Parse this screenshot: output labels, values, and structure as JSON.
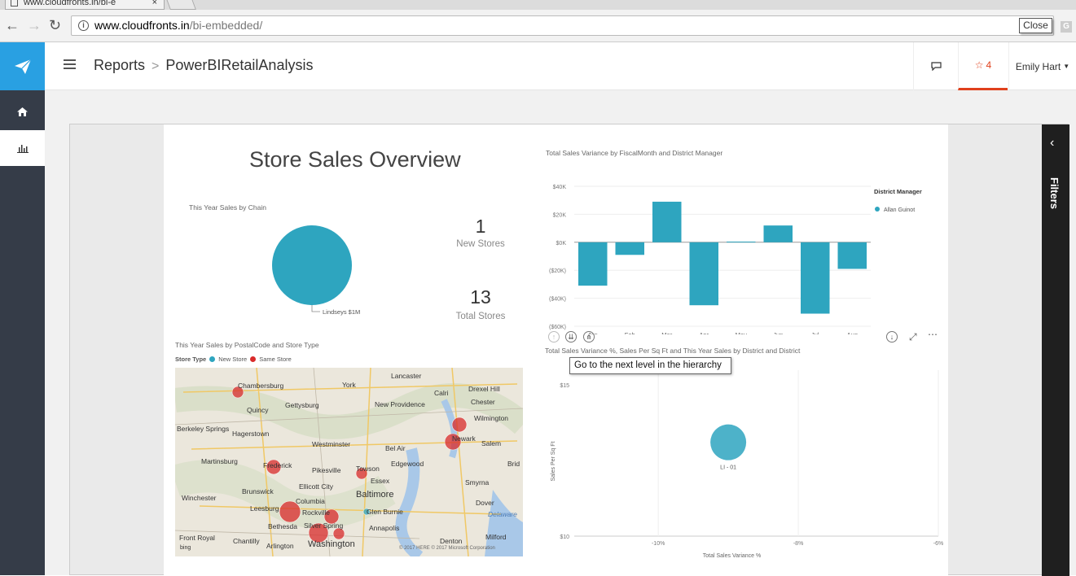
{
  "browser": {
    "tab_title": "www.cloudfronts.in/bi-e",
    "tab_close": "×",
    "url_host": "www.cloudfronts.in",
    "url_path": "/bi-embedded/",
    "close_tooltip": "Close",
    "ext_label": "G"
  },
  "header": {
    "breadcrumb_root": "Reports",
    "breadcrumb_sep": ">",
    "breadcrumb_current": "PowerBIRetailAnalysis",
    "favorites_count": "4",
    "user_name": "Emily Hart"
  },
  "filters": {
    "label": "Filters"
  },
  "report": {
    "title": "Store Sales Overview",
    "pie_title": "This Year Sales by Chain",
    "pie_label": "Lindseys $1M",
    "kpi_new_value": "1",
    "kpi_new_label": "New Stores",
    "kpi_total_value": "13",
    "kpi_total_label": "Total Stores",
    "map_title": "This Year Sales by PostalCode and Store Type",
    "map_legend_title": "Store Type",
    "map_legend_new": "New Store",
    "map_legend_same": "Same Store",
    "map_copyright": "© 2017 HERE   © 2017 Microsoft Corporation",
    "map_bing": "bing",
    "scatter_title": "Total Sales Variance %, Sales Per Sq Ft and This Year Sales by District and District",
    "tooltip": "Go to the next level in the hierarchy",
    "colors": {
      "teal": "#2ea5bf",
      "red": "#d92b2b",
      "newstore": "#2ea5bf"
    },
    "map_labels": [
      {
        "t": "Chambersburg"
      },
      {
        "t": "York"
      },
      {
        "t": "Lancaster"
      },
      {
        "t": "Calri"
      },
      {
        "t": "Drexel Hill"
      },
      {
        "t": "Gettysburg"
      },
      {
        "t": "Quincy"
      },
      {
        "t": "New Providence"
      },
      {
        "t": "Chester"
      },
      {
        "t": "Wilmington"
      },
      {
        "t": "Berkeley Springs"
      },
      {
        "t": "Hagerstown"
      },
      {
        "t": "Westminster"
      },
      {
        "t": "Bel Air"
      },
      {
        "t": "Newark"
      },
      {
        "t": "Salem"
      },
      {
        "t": "Martinsburg"
      },
      {
        "t": "Frederick"
      },
      {
        "t": "Pikesville"
      },
      {
        "t": "Towson"
      },
      {
        "t": "Edgewood"
      },
      {
        "t": "Brid"
      },
      {
        "t": "Brunswick"
      },
      {
        "t": "Ellicott City"
      },
      {
        "t": "Essex"
      },
      {
        "t": "Smyrna"
      },
      {
        "t": "Winchester"
      },
      {
        "t": "Columbia"
      },
      {
        "t": "Baltimore"
      },
      {
        "t": "Dover"
      },
      {
        "t": "Leesburg"
      },
      {
        "t": "Rockville"
      },
      {
        "t": "Glen Burnie"
      },
      {
        "t": "Delaware"
      },
      {
        "t": "Bethesda"
      },
      {
        "t": "Silver Spring"
      },
      {
        "t": "Annapolis"
      },
      {
        "t": "Front Royal"
      },
      {
        "t": "Chantilly"
      },
      {
        "t": "Arlington"
      },
      {
        "t": "Washington"
      },
      {
        "t": "Denton"
      },
      {
        "t": "Milford"
      }
    ]
  },
  "chart_data": [
    {
      "type": "bar",
      "title": "Total Sales Variance by FiscalMonth and District Manager",
      "categories": [
        "Jan",
        "Feb",
        "Mar",
        "Apr",
        "May",
        "Jun",
        "Jul",
        "Aug"
      ],
      "series": [
        {
          "name": "Allan Guinot",
          "values": [
            -31000,
            -9000,
            29000,
            -45000,
            500,
            12000,
            -51000,
            -19000
          ]
        }
      ],
      "y_ticks": [
        "$40K",
        "$20K",
        "$0K",
        "($20K)",
        "($40K)",
        "($60K)"
      ],
      "ylim": [
        -60000,
        40000
      ],
      "legend_title": "District Manager",
      "legend_position": "top-right",
      "color": "#2ea5bf"
    },
    {
      "type": "scatter",
      "title": "Total Sales Variance %, Sales Per Sq Ft and This Year Sales by District and District",
      "xlabel": "Total Sales Variance %",
      "ylabel": "Sales Per Sq Ft",
      "x_ticks": [
        "-10%",
        "-8%",
        "-6%"
      ],
      "y_ticks": [
        "$15",
        "$10"
      ],
      "xlim": [
        -11.2,
        -6
      ],
      "ylim": [
        10,
        15
      ],
      "points": [
        {
          "label": "LI - 01",
          "x": -9.0,
          "y": 13.1
        }
      ],
      "color": "#2ea5bf"
    },
    {
      "type": "pie",
      "title": "This Year Sales by Chain",
      "slices": [
        {
          "label": "Lindseys",
          "value_label": "$1M",
          "value": 1
        }
      ],
      "color": "#2ea5bf"
    }
  ]
}
